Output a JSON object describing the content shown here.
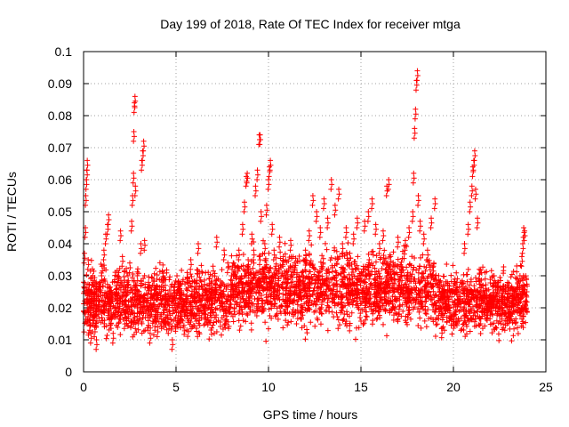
{
  "chart_data": {
    "type": "scatter",
    "title": "Day 199 of 2018, Rate Of TEC Index for receiver mtga",
    "xlabel": "GPS time / hours",
    "ylabel": "ROTI / TECUs",
    "xlim": [
      0,
      25
    ],
    "ylim": [
      0,
      0.1
    ],
    "x_ticks": [
      0,
      5,
      10,
      15,
      20,
      25
    ],
    "y_ticks": [
      0,
      0.01,
      0.02,
      0.03,
      0.04,
      0.05,
      0.06,
      0.07,
      0.08,
      0.09,
      0.1
    ],
    "x_tick_labels": [
      "0",
      "5",
      "10",
      "15",
      "20",
      "25"
    ],
    "y_tick_labels": [
      "0",
      "0.01",
      "0.02",
      "0.03",
      "0.04",
      "0.05",
      "0.06",
      "0.07",
      "0.08",
      "0.09",
      "0.1"
    ],
    "grid": true,
    "marker": "+",
    "color": "#ff0000",
    "series": [
      {
        "name": "ROTI",
        "points": [
          [
            0.0,
            0.028
          ],
          [
            0.05,
            0.037
          ],
          [
            0.1,
            0.045
          ],
          [
            0.12,
            0.055
          ],
          [
            0.15,
            0.06
          ],
          [
            0.18,
            0.063
          ],
          [
            0.2,
            0.066
          ],
          [
            0.25,
            0.035
          ],
          [
            0.3,
            0.022
          ],
          [
            0.35,
            0.016
          ],
          [
            0.4,
            0.012
          ],
          [
            0.45,
            0.025
          ],
          [
            0.5,
            0.03
          ],
          [
            0.55,
            0.019
          ],
          [
            0.6,
            0.014
          ],
          [
            0.7,
            0.01
          ],
          [
            0.8,
            0.021
          ],
          [
            0.9,
            0.028
          ],
          [
            1.0,
            0.033
          ],
          [
            1.1,
            0.038
          ],
          [
            1.2,
            0.043
          ],
          [
            1.3,
            0.046
          ],
          [
            1.35,
            0.049
          ],
          [
            1.4,
            0.024
          ],
          [
            1.5,
            0.018
          ],
          [
            1.6,
            0.012
          ],
          [
            1.7,
            0.02
          ],
          [
            1.8,
            0.026
          ],
          [
            1.9,
            0.031
          ],
          [
            2.0,
            0.044
          ],
          [
            2.1,
            0.036
          ],
          [
            2.2,
            0.028
          ],
          [
            2.3,
            0.022
          ],
          [
            2.4,
            0.03
          ],
          [
            2.5,
            0.034
          ],
          [
            2.6,
            0.047
          ],
          [
            2.65,
            0.055
          ],
          [
            2.7,
            0.062
          ],
          [
            2.72,
            0.075
          ],
          [
            2.75,
            0.084
          ],
          [
            2.78,
            0.086
          ],
          [
            2.8,
            0.058
          ],
          [
            2.9,
            0.03
          ],
          [
            3.0,
            0.025
          ],
          [
            3.1,
            0.04
          ],
          [
            3.15,
            0.066
          ],
          [
            3.2,
            0.069
          ],
          [
            3.25,
            0.072
          ],
          [
            3.3,
            0.041
          ],
          [
            3.4,
            0.022
          ],
          [
            3.5,
            0.016
          ],
          [
            3.6,
            0.012
          ],
          [
            3.7,
            0.021
          ],
          [
            3.8,
            0.027
          ],
          [
            3.9,
            0.019
          ],
          [
            4.0,
            0.014
          ],
          [
            4.2,
            0.018
          ],
          [
            4.4,
            0.024
          ],
          [
            4.6,
            0.015
          ],
          [
            4.8,
            0.01
          ],
          [
            5.0,
            0.02
          ],
          [
            5.2,
            0.026
          ],
          [
            5.4,
            0.022
          ],
          [
            5.6,
            0.031
          ],
          [
            5.8,
            0.035
          ],
          [
            6.0,
            0.028
          ],
          [
            6.2,
            0.04
          ],
          [
            6.4,
            0.024
          ],
          [
            6.6,
            0.018
          ],
          [
            6.8,
            0.029
          ],
          [
            7.0,
            0.033
          ],
          [
            7.2,
            0.042
          ],
          [
            7.4,
            0.027
          ],
          [
            7.6,
            0.038
          ],
          [
            7.8,
            0.034
          ],
          [
            8.0,
            0.03
          ],
          [
            8.2,
            0.025
          ],
          [
            8.4,
            0.038
          ],
          [
            8.6,
            0.046
          ],
          [
            8.7,
            0.053
          ],
          [
            8.8,
            0.061
          ],
          [
            8.85,
            0.062
          ],
          [
            8.9,
            0.035
          ],
          [
            9.0,
            0.028
          ],
          [
            9.1,
            0.043
          ],
          [
            9.2,
            0.038
          ],
          [
            9.3,
            0.058
          ],
          [
            9.4,
            0.063
          ],
          [
            9.5,
            0.074
          ],
          [
            9.55,
            0.074
          ],
          [
            9.6,
            0.05
          ],
          [
            9.7,
            0.032
          ],
          [
            9.8,
            0.04
          ],
          [
            9.9,
            0.052
          ],
          [
            10.0,
            0.06
          ],
          [
            10.05,
            0.064
          ],
          [
            10.1,
            0.066
          ],
          [
            10.2,
            0.046
          ],
          [
            10.3,
            0.038
          ],
          [
            10.4,
            0.033
          ],
          [
            10.5,
            0.027
          ],
          [
            10.6,
            0.042
          ],
          [
            10.8,
            0.036
          ],
          [
            11.0,
            0.029
          ],
          [
            11.2,
            0.041
          ],
          [
            11.4,
            0.034
          ],
          [
            11.6,
            0.024
          ],
          [
            11.8,
            0.02
          ],
          [
            12.0,
            0.038
          ],
          [
            12.2,
            0.044
          ],
          [
            12.4,
            0.055
          ],
          [
            12.6,
            0.05
          ],
          [
            12.8,
            0.045
          ],
          [
            13.0,
            0.054
          ],
          [
            13.2,
            0.048
          ],
          [
            13.4,
            0.06
          ],
          [
            13.6,
            0.052
          ],
          [
            13.8,
            0.057
          ],
          [
            14.0,
            0.04
          ],
          [
            14.2,
            0.045
          ],
          [
            14.4,
            0.037
          ],
          [
            14.6,
            0.043
          ],
          [
            14.8,
            0.048
          ],
          [
            15.0,
            0.03
          ],
          [
            15.2,
            0.047
          ],
          [
            15.4,
            0.05
          ],
          [
            15.6,
            0.054
          ],
          [
            15.8,
            0.046
          ],
          [
            16.0,
            0.04
          ],
          [
            16.2,
            0.044
          ],
          [
            16.4,
            0.058
          ],
          [
            16.5,
            0.06
          ],
          [
            16.6,
            0.036
          ],
          [
            16.8,
            0.029
          ],
          [
            17.0,
            0.042
          ],
          [
            17.2,
            0.03
          ],
          [
            17.4,
            0.041
          ],
          [
            17.6,
            0.045
          ],
          [
            17.8,
            0.05
          ],
          [
            17.85,
            0.062
          ],
          [
            17.9,
            0.076
          ],
          [
            17.95,
            0.082
          ],
          [
            18.0,
            0.091
          ],
          [
            18.05,
            0.094
          ],
          [
            18.1,
            0.055
          ],
          [
            18.2,
            0.047
          ],
          [
            18.4,
            0.043
          ],
          [
            18.6,
            0.038
          ],
          [
            18.8,
            0.048
          ],
          [
            19.0,
            0.054
          ],
          [
            19.2,
            0.03
          ],
          [
            19.4,
            0.026
          ],
          [
            19.6,
            0.022
          ],
          [
            19.8,
            0.019
          ],
          [
            20.0,
            0.018
          ],
          [
            20.2,
            0.024
          ],
          [
            20.4,
            0.028
          ],
          [
            20.6,
            0.04
          ],
          [
            20.8,
            0.046
          ],
          [
            20.9,
            0.053
          ],
          [
            21.0,
            0.058
          ],
          [
            21.05,
            0.064
          ],
          [
            21.1,
            0.066
          ],
          [
            21.15,
            0.069
          ],
          [
            21.2,
            0.057
          ],
          [
            21.3,
            0.048
          ],
          [
            21.4,
            0.032
          ],
          [
            21.6,
            0.027
          ],
          [
            21.8,
            0.022
          ],
          [
            22.0,
            0.024
          ],
          [
            22.2,
            0.03
          ],
          [
            22.4,
            0.028
          ],
          [
            22.6,
            0.018
          ],
          [
            22.8,
            0.016
          ],
          [
            23.0,
            0.022
          ],
          [
            23.2,
            0.026
          ],
          [
            23.4,
            0.024
          ],
          [
            23.6,
            0.03
          ],
          [
            23.7,
            0.036
          ],
          [
            23.75,
            0.04
          ],
          [
            23.8,
            0.045
          ],
          [
            23.85,
            0.044
          ]
        ],
        "baseline_band": [
          0.008,
          0.036
        ]
      }
    ]
  }
}
